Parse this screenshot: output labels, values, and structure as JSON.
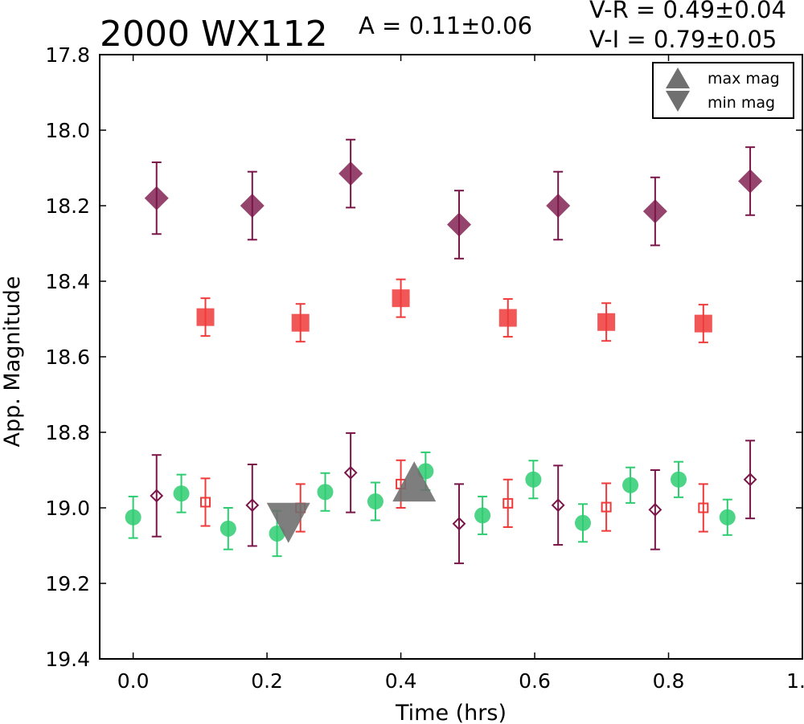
{
  "header": {
    "title": "2000 WX112",
    "amplitude": "A  = 0.11±0.06",
    "color_vr": "V-R = 0.49±0.04",
    "color_vi": "V-I  = 0.79±0.05"
  },
  "chart_data": {
    "type": "scatter",
    "title": "2000 WX112",
    "xlabel": "Time (hrs)",
    "ylabel": "App. Magnitude",
    "xlim": [
      -0.05,
      1.0
    ],
    "ylim": [
      19.4,
      17.8
    ],
    "y_inverted": true,
    "grid": false,
    "legend_position": "top-right",
    "x_ticks": [
      0.0,
      0.2,
      0.4,
      0.6,
      0.8,
      1.0
    ],
    "x_tick_labels": [
      "0.0",
      "0.2",
      "0.4",
      "0.6",
      "0.8",
      "1.0"
    ],
    "y_ticks": [
      17.8,
      18.0,
      18.2,
      18.4,
      18.6,
      18.8,
      19.0,
      19.2,
      19.4
    ],
    "y_tick_labels": [
      "17.8",
      "18.0",
      "18.2",
      "18.4",
      "18.6",
      "18.8",
      "19.0",
      "19.2",
      "19.4"
    ],
    "colors": {
      "purple": "#7a1548",
      "red": "#f03a3a",
      "green": "#2ecc71",
      "gray": "#707070"
    },
    "series": [
      {
        "marker": "diamond-filled",
        "color": "#7a1548",
        "points": [
          {
            "x": 0.035,
            "y": 18.18,
            "err": 0.095
          },
          {
            "x": 0.178,
            "y": 18.2,
            "err": 0.09
          },
          {
            "x": 0.325,
            "y": 18.115,
            "err": 0.09
          },
          {
            "x": 0.487,
            "y": 18.25,
            "err": 0.09
          },
          {
            "x": 0.635,
            "y": 18.2,
            "err": 0.09
          },
          {
            "x": 0.78,
            "y": 18.215,
            "err": 0.09
          },
          {
            "x": 0.922,
            "y": 18.135,
            "err": 0.09
          }
        ]
      },
      {
        "marker": "square-filled",
        "color": "#f03a3a",
        "points": [
          {
            "x": 0.108,
            "y": 18.495,
            "err": 0.05
          },
          {
            "x": 0.25,
            "y": 18.51,
            "err": 0.05
          },
          {
            "x": 0.4,
            "y": 18.445,
            "err": 0.05
          },
          {
            "x": 0.56,
            "y": 18.497,
            "err": 0.05
          },
          {
            "x": 0.707,
            "y": 18.508,
            "err": 0.05
          },
          {
            "x": 0.852,
            "y": 18.512,
            "err": 0.05
          }
        ]
      },
      {
        "marker": "circle-filled",
        "color": "#2ecc71",
        "points": [
          {
            "x": 0.0,
            "y": 19.025,
            "err": 0.055
          },
          {
            "x": 0.072,
            "y": 18.962,
            "err": 0.05
          },
          {
            "x": 0.142,
            "y": 19.055,
            "err": 0.055
          },
          {
            "x": 0.215,
            "y": 19.068,
            "err": 0.06
          },
          {
            "x": 0.287,
            "y": 18.958,
            "err": 0.05
          },
          {
            "x": 0.362,
            "y": 18.983,
            "err": 0.05
          },
          {
            "x": 0.437,
            "y": 18.903,
            "err": 0.05
          },
          {
            "x": 0.522,
            "y": 19.02,
            "err": 0.05
          },
          {
            "x": 0.598,
            "y": 18.925,
            "err": 0.05
          },
          {
            "x": 0.672,
            "y": 19.04,
            "err": 0.05
          },
          {
            "x": 0.743,
            "y": 18.94,
            "err": 0.047
          },
          {
            "x": 0.815,
            "y": 18.925,
            "err": 0.047
          },
          {
            "x": 0.888,
            "y": 19.025,
            "err": 0.047
          }
        ]
      },
      {
        "marker": "diamond-open",
        "color": "#7a1548",
        "points": [
          {
            "x": 0.035,
            "y": 18.968,
            "err": 0.108
          },
          {
            "x": 0.178,
            "y": 18.993,
            "err": 0.108
          },
          {
            "x": 0.325,
            "y": 18.907,
            "err": 0.105
          },
          {
            "x": 0.487,
            "y": 19.042,
            "err": 0.105
          },
          {
            "x": 0.635,
            "y": 18.993,
            "err": 0.105
          },
          {
            "x": 0.78,
            "y": 19.005,
            "err": 0.105
          },
          {
            "x": 0.922,
            "y": 18.925,
            "err": 0.103
          }
        ]
      },
      {
        "marker": "square-open",
        "color": "#f03a3a",
        "points": [
          {
            "x": 0.108,
            "y": 18.985,
            "err": 0.063
          },
          {
            "x": 0.25,
            "y": 19.0,
            "err": 0.063
          },
          {
            "x": 0.4,
            "y": 18.937,
            "err": 0.063
          },
          {
            "x": 0.56,
            "y": 18.988,
            "err": 0.063
          },
          {
            "x": 0.707,
            "y": 18.998,
            "err": 0.063
          },
          {
            "x": 0.852,
            "y": 19.0,
            "err": 0.063
          }
        ]
      }
    ],
    "extrema": [
      {
        "label": "max mag",
        "marker": "triangle-up",
        "x": 0.42,
        "y": 18.93,
        "color": "#707070"
      },
      {
        "label": "min mag",
        "marker": "triangle-down",
        "x": 0.232,
        "y": 19.04,
        "color": "#707070"
      }
    ],
    "legend": [
      {
        "label": "max mag",
        "marker": "triangle-up"
      },
      {
        "label": "min mag",
        "marker": "triangle-down"
      }
    ]
  }
}
